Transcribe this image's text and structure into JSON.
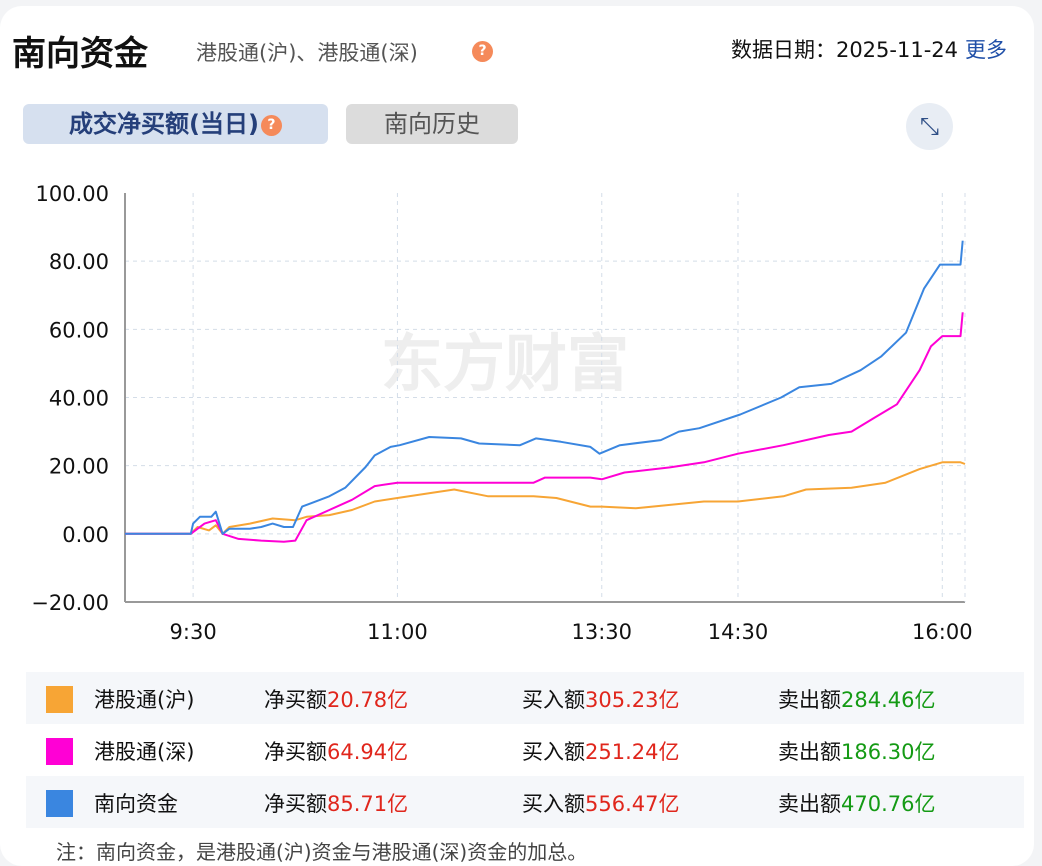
{
  "header": {
    "title": "南向资金",
    "subtitle": "港股通(沪)、港股通(深)",
    "help_icon": "?",
    "date_label": "数据日期：",
    "date": "2025-11-24",
    "more": "更多"
  },
  "tabs": [
    {
      "label": "成交净买额(当日)",
      "active": true
    },
    {
      "label": "南向历史",
      "active": false
    }
  ],
  "expand_icon": "expand-icon",
  "watermark": "东方财富",
  "chart_data": {
    "type": "line",
    "title": "",
    "xlabel": "",
    "ylabel": "",
    "ylim": [
      -20,
      100
    ],
    "yticks": [
      "100.00",
      "80.00",
      "60.00",
      "40.00",
      "20.00",
      "0.00",
      "−20.00"
    ],
    "xlim": [
      "9:00",
      "16:10"
    ],
    "xticks": [
      "9:30",
      "11:00",
      "13:30",
      "14:30",
      "16:00"
    ],
    "grid": true,
    "series": [
      {
        "name": "港股通(沪)",
        "color": "#f7a535",
        "points": [
          [
            "9:00",
            0
          ],
          [
            "9:29",
            0
          ],
          [
            "9:32",
            2
          ],
          [
            "9:37",
            1
          ],
          [
            "9:40",
            2.5
          ],
          [
            "9:43",
            0
          ],
          [
            "9:46",
            2
          ],
          [
            "9:55",
            3
          ],
          [
            "10:05",
            4.5
          ],
          [
            "10:15",
            4
          ],
          [
            "10:20",
            5
          ],
          [
            "10:30",
            5.5
          ],
          [
            "10:40",
            7
          ],
          [
            "10:50",
            9.5
          ],
          [
            "11:00",
            10.5
          ],
          [
            "11:15",
            12
          ],
          [
            "11:25",
            13
          ],
          [
            "11:40",
            11
          ],
          [
            "12:00",
            11
          ],
          [
            "13:10",
            10.5
          ],
          [
            "13:25",
            8
          ],
          [
            "13:30",
            8
          ],
          [
            "13:45",
            7.5
          ],
          [
            "14:00",
            8.5
          ],
          [
            "14:15",
            9.5
          ],
          [
            "14:30",
            9.5
          ],
          [
            "14:50",
            11
          ],
          [
            "15:00",
            13
          ],
          [
            "15:20",
            13.5
          ],
          [
            "15:35",
            15
          ],
          [
            "15:50",
            19
          ],
          [
            "16:00",
            21
          ],
          [
            "16:08",
            21
          ],
          [
            "16:10",
            20.5
          ]
        ]
      },
      {
        "name": "港股通(深)",
        "color": "#ff00d5",
        "points": [
          [
            "9:00",
            0
          ],
          [
            "9:29",
            0
          ],
          [
            "9:35",
            3
          ],
          [
            "9:40",
            4
          ],
          [
            "9:43",
            0
          ],
          [
            "9:50",
            -1.5
          ],
          [
            "10:00",
            -2
          ],
          [
            "10:10",
            -2.3
          ],
          [
            "10:15",
            -2
          ],
          [
            "10:20",
            4
          ],
          [
            "10:30",
            7
          ],
          [
            "10:40",
            10
          ],
          [
            "10:50",
            14
          ],
          [
            "11:00",
            15
          ],
          [
            "11:30",
            15
          ],
          [
            "12:00",
            15
          ],
          [
            "13:05",
            16.5
          ],
          [
            "13:25",
            16.5
          ],
          [
            "13:30",
            16
          ],
          [
            "13:40",
            18
          ],
          [
            "14:00",
            19.5
          ],
          [
            "14:15",
            21
          ],
          [
            "14:30",
            23.5
          ],
          [
            "14:50",
            26
          ],
          [
            "15:10",
            29
          ],
          [
            "15:20",
            30
          ],
          [
            "15:30",
            34
          ],
          [
            "15:40",
            38
          ],
          [
            "15:50",
            48
          ],
          [
            "15:55",
            55
          ],
          [
            "16:00",
            58
          ],
          [
            "16:08",
            58
          ],
          [
            "16:09",
            65
          ]
        ]
      },
      {
        "name": "南向资金",
        "color": "#3a86e0",
        "points": [
          [
            "9:00",
            0
          ],
          [
            "9:29",
            0
          ],
          [
            "9:30",
            3
          ],
          [
            "9:33",
            5
          ],
          [
            "9:38",
            5
          ],
          [
            "9:40",
            6.5
          ],
          [
            "9:43",
            0
          ],
          [
            "9:46",
            1.5
          ],
          [
            "9:55",
            1.5
          ],
          [
            "10:00",
            2
          ],
          [
            "10:05",
            3
          ],
          [
            "10:10",
            2
          ],
          [
            "10:14",
            2
          ],
          [
            "10:18",
            8
          ],
          [
            "10:22",
            9
          ],
          [
            "10:30",
            11
          ],
          [
            "10:37",
            13.5
          ],
          [
            "10:46",
            19.6
          ],
          [
            "10:50",
            23
          ],
          [
            "10:57",
            25.5
          ],
          [
            "11:01",
            26
          ],
          [
            "11:14",
            28.4
          ],
          [
            "11:28",
            28
          ],
          [
            "11:36",
            26.5
          ],
          [
            "11:54",
            26
          ],
          [
            "13:01",
            28
          ],
          [
            "13:12",
            27
          ],
          [
            "13:25",
            25.5
          ],
          [
            "13:29",
            23.5
          ],
          [
            "13:38",
            26
          ],
          [
            "13:56",
            27.5
          ],
          [
            "14:04",
            30
          ],
          [
            "14:13",
            31
          ],
          [
            "14:31",
            35
          ],
          [
            "14:49",
            40
          ],
          [
            "14:57",
            43
          ],
          [
            "15:11",
            44
          ],
          [
            "15:24",
            48
          ],
          [
            "15:33",
            52
          ],
          [
            "15:44",
            59
          ],
          [
            "15:52",
            72
          ],
          [
            "15:59",
            79
          ],
          [
            "16:08",
            79
          ],
          [
            "16:09",
            86
          ]
        ]
      }
    ]
  },
  "legend": [
    {
      "name": "港股通(沪)",
      "color": "#f7a535",
      "net_label": "净买额",
      "net": "20.78亿",
      "buy_label": "买入额",
      "buy": "305.23亿",
      "sell_label": "卖出额",
      "sell": "284.46亿"
    },
    {
      "name": "港股通(深)",
      "color": "#ff00d5",
      "net_label": "净买额",
      "net": "64.94亿",
      "buy_label": "买入额",
      "buy": "251.24亿",
      "sell_label": "卖出额",
      "sell": "186.30亿"
    },
    {
      "name": "南向资金",
      "color": "#3a86e0",
      "net_label": "净买额",
      "net": "85.71亿",
      "buy_label": "买入额",
      "buy": "556.47亿",
      "sell_label": "卖出额",
      "sell": "470.76亿"
    }
  ],
  "note": "注：南向资金，是港股通(沪)资金与港股通(深)资金的加总。"
}
